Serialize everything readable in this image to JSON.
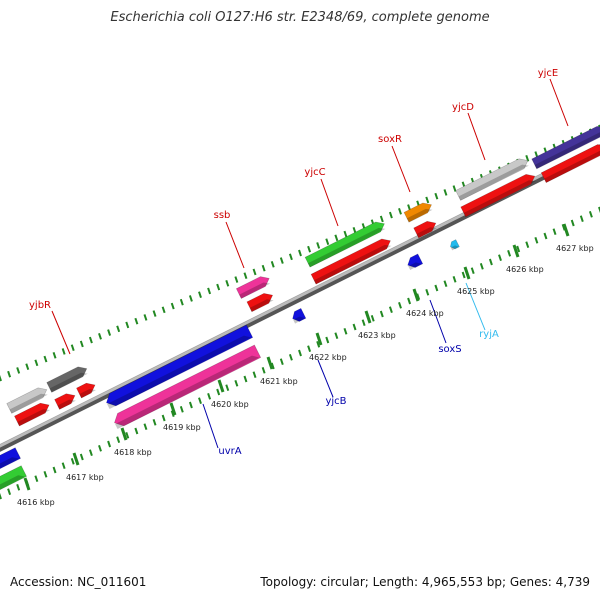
{
  "header": {
    "title": "Escherichia coli O127:H6 str. E2348/69, complete genome"
  },
  "footer": {
    "accession": "Accession: NC_011601",
    "summary": "Topology: circular; Length: 4,965,553 bp; Genes: 4,739"
  },
  "colors": {
    "cds": "#ee1111",
    "gray": "#c8c8c8",
    "darkgray": "#666666",
    "magenta": "#ee3399",
    "green": "#33cc33",
    "orange": "#f08800",
    "purple": "#443399",
    "blue": "#1111dd",
    "cyan": "#22bbee",
    "label_red": "#cc0000",
    "label_blue": "#0000aa",
    "label_cyan": "#33bbee",
    "tick": "#228822",
    "backbone": "#888888"
  },
  "scale": {
    "unit": "kbp",
    "ticks": [
      {
        "label": "4616 kbp"
      },
      {
        "label": "4617 kbp"
      },
      {
        "label": "4618 kbp"
      },
      {
        "label": "4619 kbp"
      },
      {
        "label": "4620 kbp"
      },
      {
        "label": "4621 kbp"
      },
      {
        "label": "4622 kbp"
      },
      {
        "label": "4623 kbp"
      },
      {
        "label": "4624 kbp"
      },
      {
        "label": "4625 kbp"
      },
      {
        "label": "4626 kbp"
      },
      {
        "label": "4627 kbp"
      }
    ]
  },
  "gene_labels": [
    {
      "name": "yjbR",
      "color": "label_red"
    },
    {
      "name": "ssb",
      "color": "label_red"
    },
    {
      "name": "yjcC",
      "color": "label_red"
    },
    {
      "name": "soxR",
      "color": "label_red"
    },
    {
      "name": "yjcD",
      "color": "label_red"
    },
    {
      "name": "yjcE",
      "color": "label_red"
    },
    {
      "name": "uvrA",
      "color": "label_blue"
    },
    {
      "name": "yjcB",
      "color": "label_blue"
    },
    {
      "name": "soxS",
      "color": "label_blue"
    },
    {
      "name": "ryjA",
      "color": "label_cyan"
    }
  ]
}
